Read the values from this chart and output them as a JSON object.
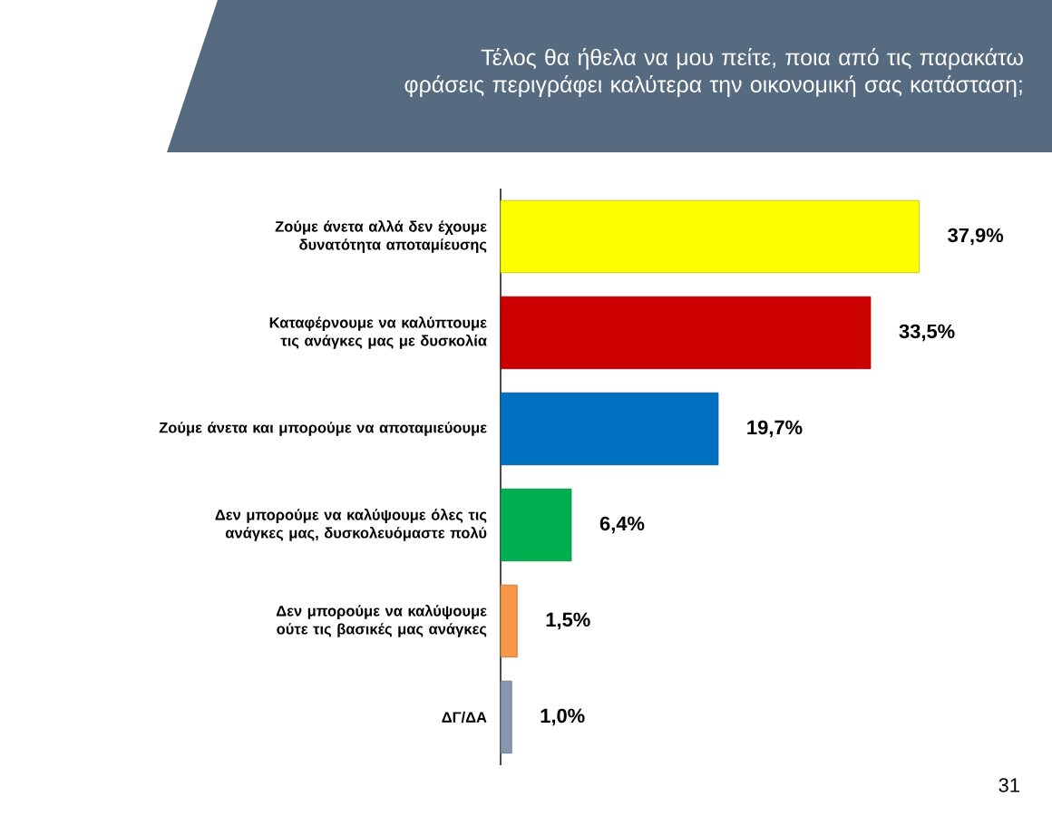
{
  "chart_data": {
    "type": "bar",
    "orientation": "horizontal",
    "title": "Τέλος θα ήθελα να μου πείτε,  ποια από τις παρακάτω φράσεις περιγράφει καλύτερα την οικονομική σας κατάσταση;",
    "categories": [
      "Ζούμε άνετα αλλά δεν έχουμε δυνατότητα αποταμίευσης",
      "Καταφέρνουμε να καλύπτουμε τις ανάγκες μας με δυσκολία",
      "Ζούμε άνετα και μπορούμε να αποταμιεύουμε",
      "Δεν μπορούμε να καλύψουμε όλες τις ανάγκες μας, δυσκολευόμαστε πολύ",
      "Δεν μπορούμε να καλύψουμε ούτε τις βασικές μας ανάγκες",
      "ΔΓ/ΔΑ"
    ],
    "values": [
      37.9,
      33.5,
      19.7,
      6.4,
      1.5,
      1.0
    ],
    "colors": [
      "#ffff00",
      "#cc0000",
      "#0070c0",
      "#00b050",
      "#f79646",
      "#8496b0"
    ],
    "value_labels": [
      "37,9%",
      "33,5%",
      "19,7%",
      "6,4%",
      "1,5%",
      "1,0%"
    ],
    "annotations": [
      "31"
    ]
  }
}
